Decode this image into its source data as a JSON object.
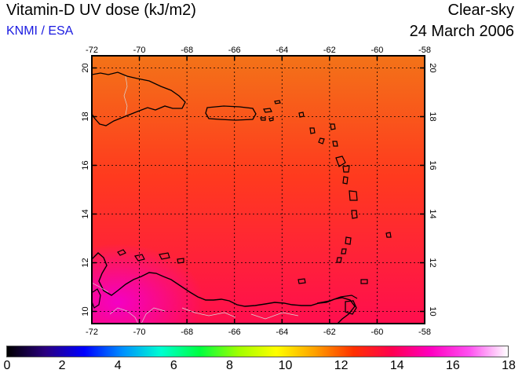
{
  "header": {
    "title": "Vitamin-D UV dose (kJ/m2)",
    "credit": "KNMI / ESA",
    "sky_condition": "Clear-sky",
    "date": "24 March 2006"
  },
  "map": {
    "lon_ticks": [
      "-72",
      "-70",
      "-68",
      "-66",
      "-64",
      "-62",
      "-60",
      "-58"
    ],
    "lat_ticks": [
      "10",
      "12",
      "14",
      "16",
      "18",
      "20"
    ],
    "lon_range": [
      -72,
      -58
    ],
    "lat_range": [
      9.5,
      20.5
    ],
    "grid": true
  },
  "colorbar": {
    "labels": [
      "0",
      "2",
      "4",
      "6",
      "8",
      "10",
      "12",
      "14",
      "16",
      "18"
    ],
    "range": [
      0,
      18
    ],
    "colors": [
      "#000000",
      "#2a0080",
      "#0000ff",
      "#0090ff",
      "#00ffd0",
      "#00ff40",
      "#a0ff00",
      "#ffff00",
      "#ffa000",
      "#ff3000",
      "#ff0050",
      "#ff00c0",
      "#ff50f0",
      "#ffffff"
    ]
  },
  "field_colors": {
    "north": "#f37318",
    "middle": "#ff3a1e",
    "south": "#ff0e4e",
    "hotspot": "#f400c4"
  }
}
